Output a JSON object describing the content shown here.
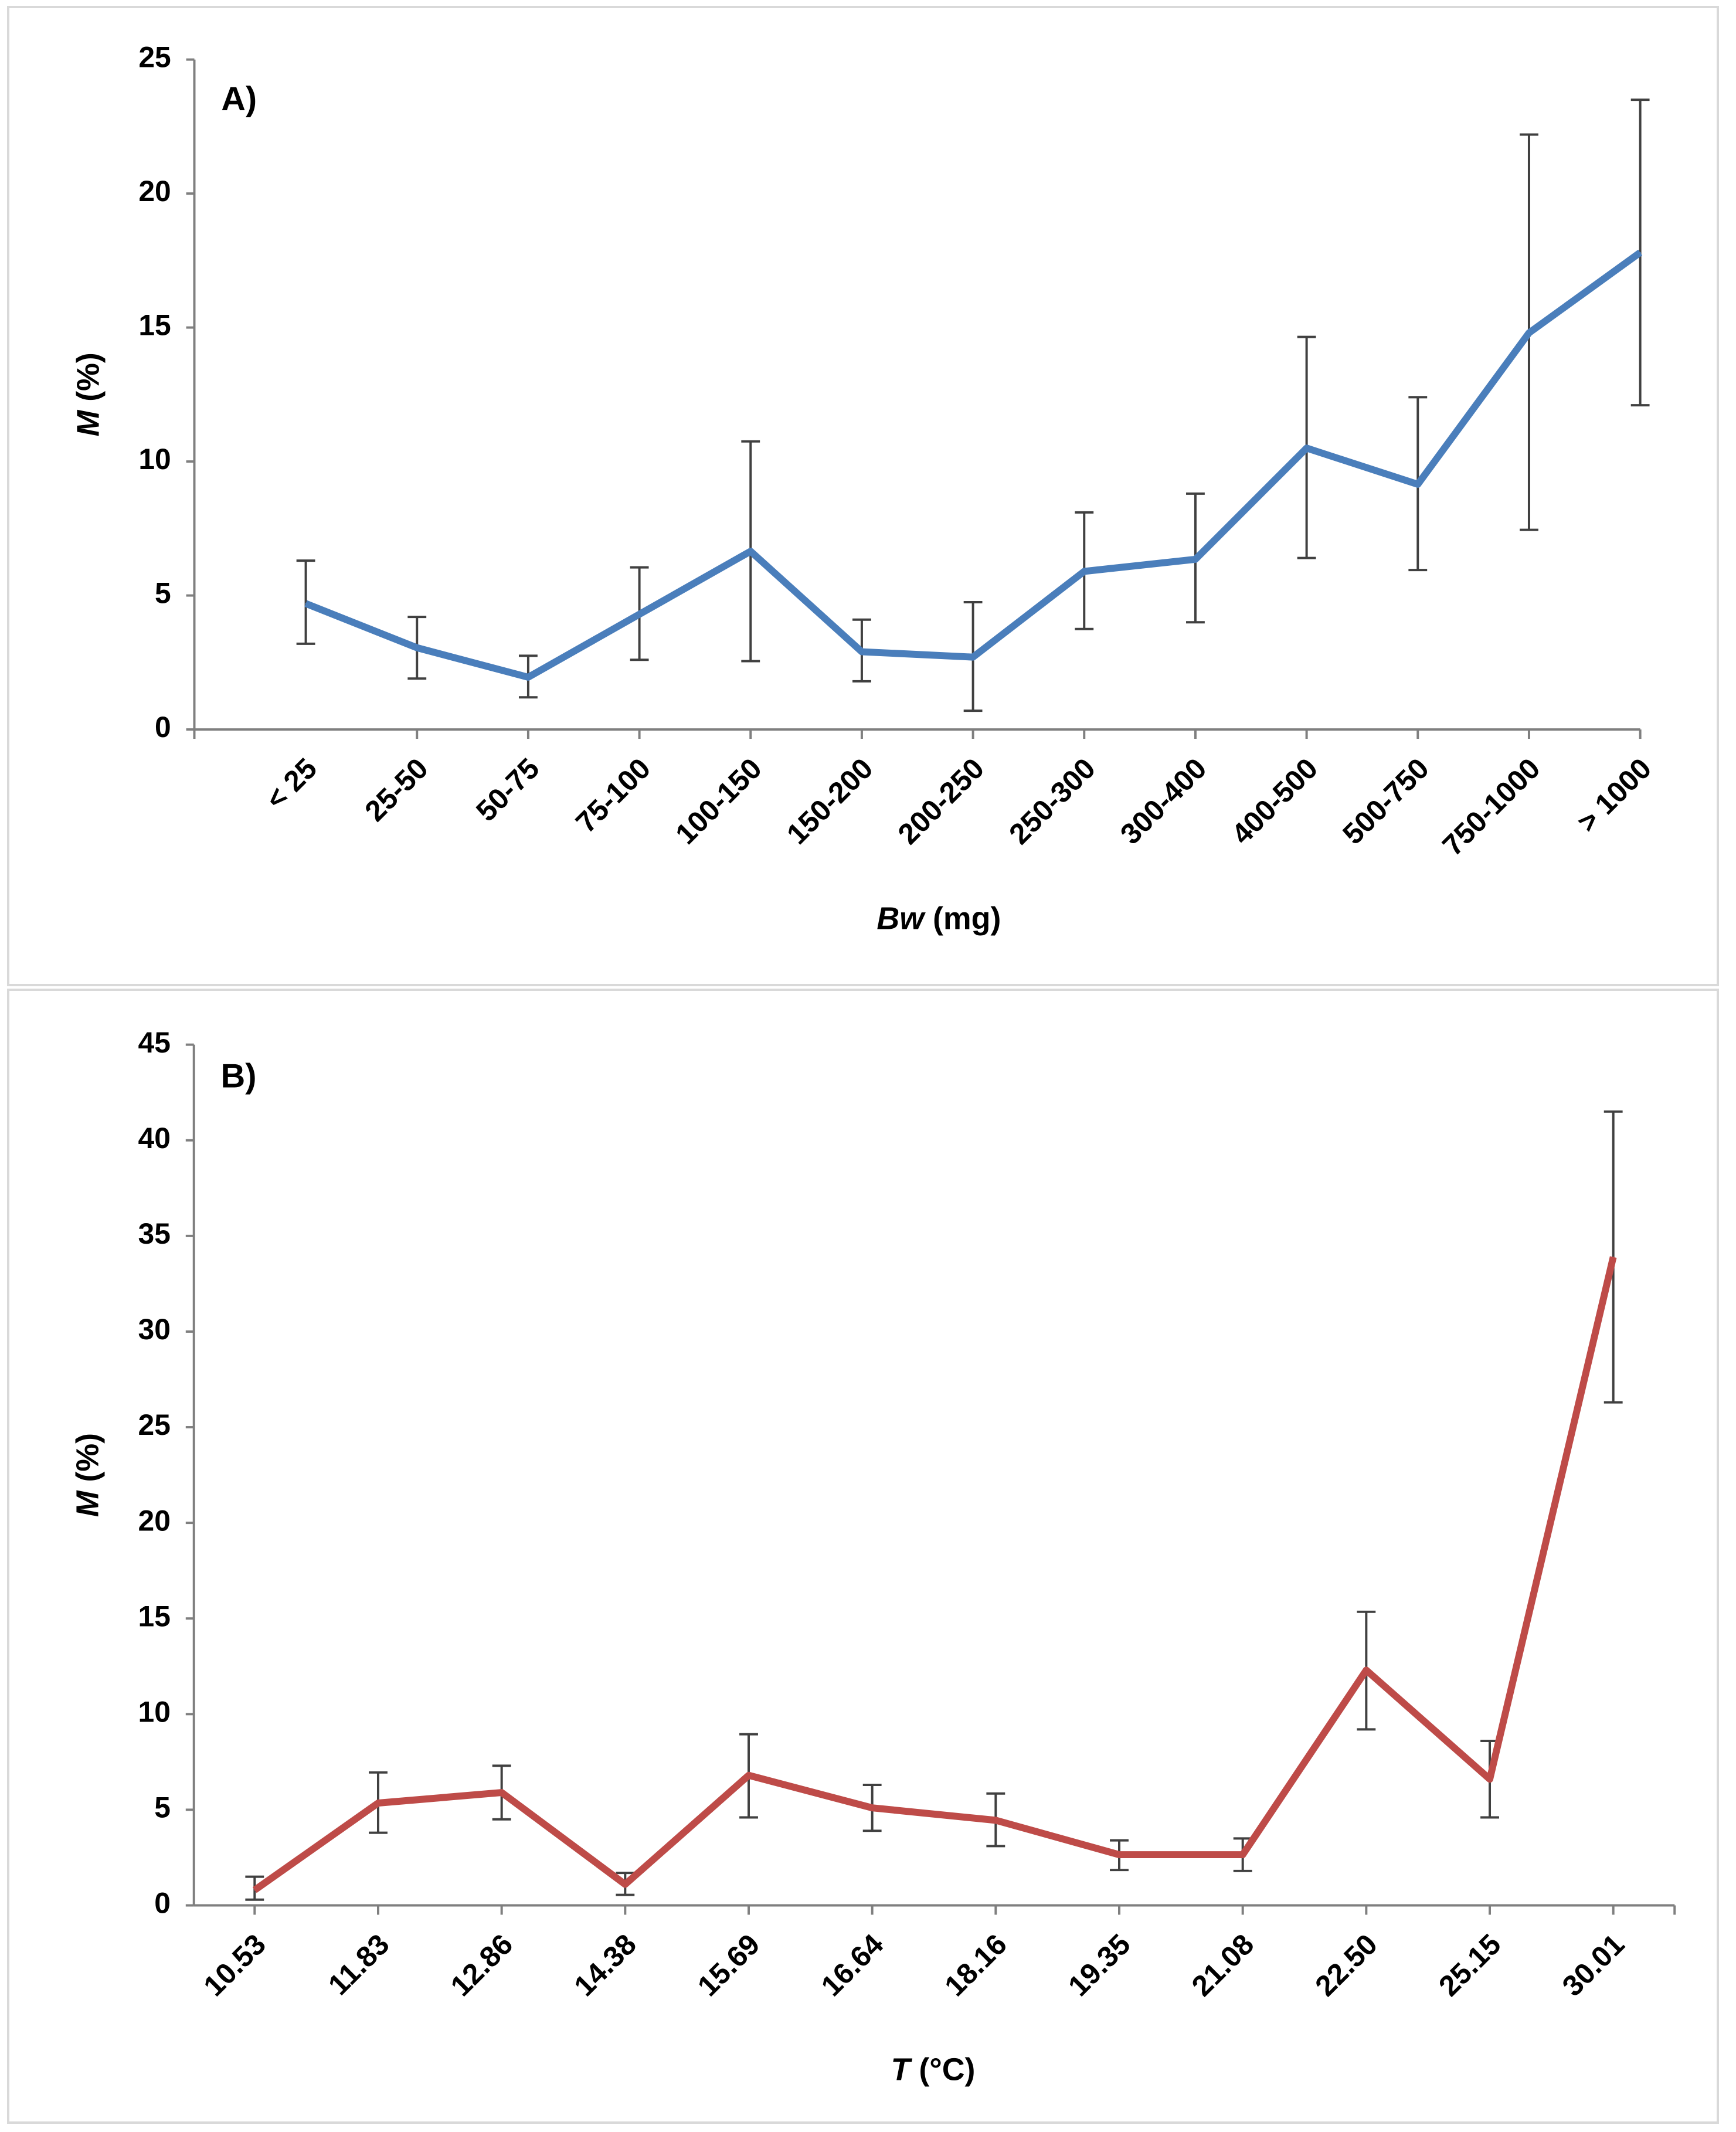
{
  "chart_data": [
    {
      "type": "line",
      "panel_label": "A)",
      "title": "",
      "xlabel_italic": "Bw",
      "xlabel_rest": " (mg)",
      "ylabel_italic": "M",
      "ylabel_rest": " (%)",
      "ylim": [
        0,
        25
      ],
      "yticks": [
        0,
        5,
        10,
        15,
        20,
        25
      ],
      "grid": false,
      "color": "#4a7ebb",
      "categories": [
        "< 25",
        "25-50",
        "50-75",
        "75-100",
        "100-150",
        "150-200",
        "200-250",
        "250-300",
        "300-400",
        "400-500",
        "500-750",
        "750-1000",
        "> 1000"
      ],
      "values": [
        4.7,
        3.05,
        1.95,
        4.3,
        6.65,
        2.9,
        2.7,
        5.9,
        6.35,
        10.5,
        9.15,
        14.8,
        17.8
      ],
      "error_low": [
        3.2,
        1.9,
        1.2,
        2.6,
        2.55,
        1.8,
        0.7,
        3.75,
        4.0,
        6.4,
        5.95,
        7.45,
        12.1
      ],
      "error_high": [
        6.3,
        4.2,
        2.75,
        6.05,
        10.75,
        4.1,
        4.75,
        8.1,
        8.8,
        14.65,
        12.4,
        22.2,
        23.5
      ]
    },
    {
      "type": "line",
      "panel_label": "B)",
      "title": "",
      "xlabel_italic": "T",
      "xlabel_rest": " (°C)",
      "ylabel_italic": "M",
      "ylabel_rest": " (%)",
      "ylim": [
        0,
        45
      ],
      "yticks": [
        0,
        5,
        10,
        15,
        20,
        25,
        30,
        35,
        40,
        45
      ],
      "grid": false,
      "color": "#be4b48",
      "categories": [
        "10.53",
        "11.83",
        "12.86",
        "14.38",
        "15.69",
        "16.64",
        "18.16",
        "19.35",
        "21.08",
        "22.50",
        "25.15",
        "30.01"
      ],
      "values": [
        0.8,
        5.35,
        5.9,
        1.1,
        6.8,
        5.1,
        4.45,
        2.65,
        2.65,
        12.3,
        6.6,
        33.9
      ],
      "error_low": [
        0.3,
        3.8,
        4.5,
        0.55,
        4.6,
        3.9,
        3.1,
        1.85,
        1.8,
        9.2,
        4.6,
        26.3
      ],
      "error_high": [
        1.5,
        6.95,
        7.3,
        1.7,
        8.95,
        6.3,
        5.85,
        3.4,
        3.5,
        15.35,
        8.6,
        41.5
      ]
    }
  ]
}
